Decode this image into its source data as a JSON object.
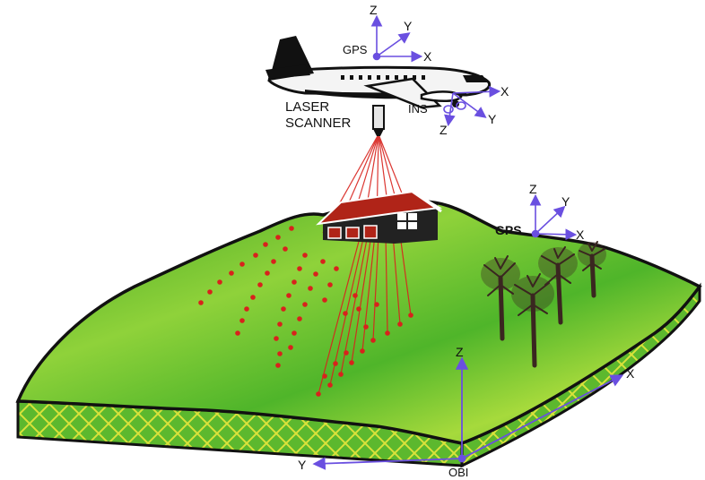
{
  "labels": {
    "gps_air": "GPS",
    "gps_ground": "GPS",
    "ins": "INS",
    "laser_line1": "LASER",
    "laser_line2": "SCANNER",
    "obi": "OBI"
  },
  "axes": {
    "x": "X",
    "y": "Y",
    "z": "Z"
  },
  "colors": {
    "terrain_top": "#4fb52a",
    "terrain_light": "#9fd63a",
    "terrain_edge": "#2e7d1f",
    "side_fill": "#5cb82e",
    "side_hatch": "#d9e23a",
    "axis": "#6a4fe0",
    "laser": "#d8221c",
    "house": "#222222",
    "roof": "#b02418",
    "tree": "#3a2620"
  },
  "icons": {
    "aircraft": "airplane-icon",
    "scanner": "laser-scanner-icon",
    "house": "house-icon",
    "trees": "tree-icon"
  }
}
